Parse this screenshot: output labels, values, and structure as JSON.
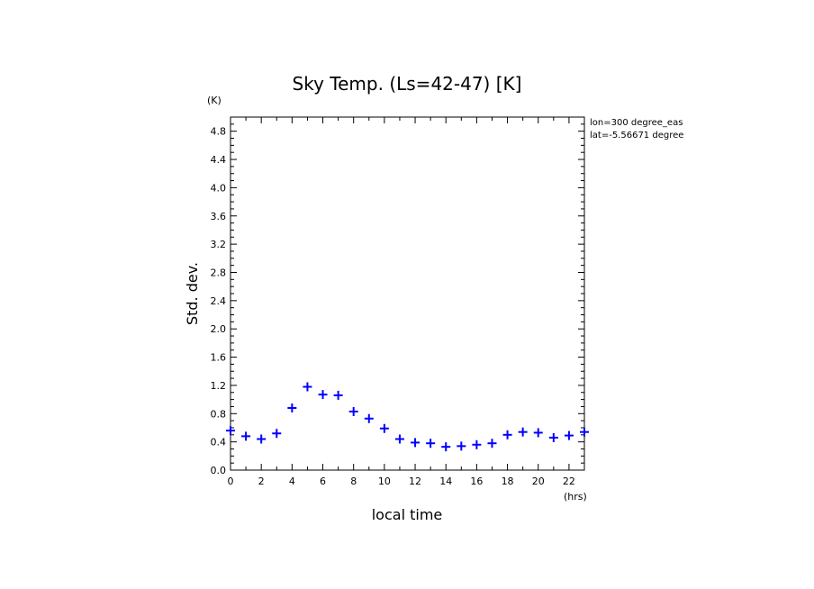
{
  "chart_data": {
    "type": "scatter",
    "title": "Sky Temp. (Ls=42-47) [K]",
    "xlabel": "local time",
    "ylabel": "Std. dev.",
    "x_unit": "(hrs)",
    "y_unit": "(K)",
    "annotations": [
      "lon=300 degree_eas",
      "lat=-5.56671 degree"
    ],
    "xlim": [
      0,
      23
    ],
    "ylim": [
      0,
      5.0
    ],
    "x_ticks": [
      0,
      2,
      4,
      6,
      8,
      10,
      12,
      14,
      16,
      18,
      20,
      22
    ],
    "y_ticks": [
      0.0,
      0.4,
      0.8,
      1.2,
      1.6,
      2.0,
      2.4,
      2.8,
      3.2,
      3.6,
      4.0,
      4.4,
      4.8
    ],
    "y_tick_labels": [
      "0.0",
      "0.4",
      "0.8",
      "1.2",
      "1.6",
      "2.0",
      "2.4",
      "2.8",
      "3.2",
      "3.6",
      "4.0",
      "4.4",
      "4.8"
    ],
    "marker": "plus",
    "color": "#0000ff",
    "x": [
      0,
      1,
      2,
      3,
      4,
      5,
      6,
      7,
      8,
      9,
      10,
      11,
      12,
      13,
      14,
      15,
      16,
      17,
      18,
      19,
      20,
      21,
      22,
      23
    ],
    "y": [
      0.56,
      0.48,
      0.44,
      0.52,
      0.88,
      1.18,
      1.07,
      1.06,
      0.83,
      0.73,
      0.59,
      0.44,
      0.39,
      0.38,
      0.33,
      0.34,
      0.36,
      0.38,
      0.5,
      0.54,
      0.53,
      0.46,
      0.49,
      0.54
    ]
  }
}
